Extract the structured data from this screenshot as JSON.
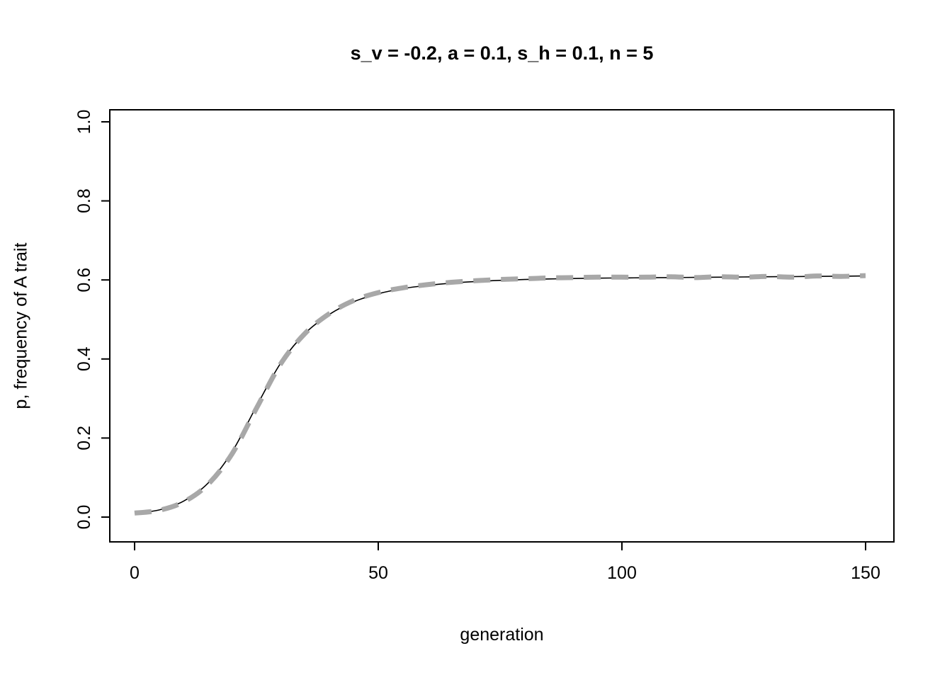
{
  "chart_data": {
    "type": "line",
    "title": "s_v = -0.2, a = 0.1, s_h = 0.1, n = 5",
    "xlabel": "generation",
    "ylabel": "p, frequency of A trait",
    "xlim": [
      0,
      150
    ],
    "ylim": [
      0.0,
      1.0
    ],
    "xticks": [
      0,
      50,
      100,
      150
    ],
    "xtick_labels": [
      "0",
      "50",
      "100",
      "150"
    ],
    "yticks": [
      0.0,
      0.2,
      0.4,
      0.6,
      0.8,
      1.0
    ],
    "ytick_labels": [
      "0.0",
      "0.2",
      "0.4",
      "0.6",
      "0.8",
      "1.0"
    ],
    "grid": false,
    "legend": null,
    "x": [
      0,
      5,
      10,
      15,
      20,
      25,
      30,
      35,
      40,
      45,
      50,
      55,
      60,
      65,
      70,
      75,
      80,
      85,
      90,
      95,
      100,
      105,
      110,
      115,
      120,
      125,
      130,
      135,
      140,
      145,
      150
    ],
    "series": [
      {
        "name": "analytic-recursion-solid-black",
        "color": "#000000",
        "line_width": 1.6,
        "dash": null,
        "values": [
          0.01,
          0.018,
          0.04,
          0.085,
          0.165,
          0.28,
          0.39,
          0.465,
          0.513,
          0.545,
          0.565,
          0.578,
          0.586,
          0.592,
          0.596,
          0.599,
          0.601,
          0.6025,
          0.6035,
          0.6045,
          0.605,
          0.6055,
          0.606,
          0.6065,
          0.607,
          0.6075,
          0.608,
          0.6085,
          0.609,
          0.6095,
          0.61
        ]
      },
      {
        "name": "simulation-dashed-gray",
        "color": "#a8a8a8",
        "line_width": 7,
        "dash": [
          24,
          15
        ],
        "values": [
          0.01,
          0.017,
          0.038,
          0.082,
          0.16,
          0.275,
          0.388,
          0.465,
          0.515,
          0.548,
          0.568,
          0.58,
          0.588,
          0.594,
          0.598,
          0.601,
          0.603,
          0.605,
          0.606,
          0.607,
          0.607,
          0.607,
          0.608,
          0.606,
          0.608,
          0.607,
          0.609,
          0.607,
          0.61,
          0.609,
          0.611
        ]
      }
    ]
  }
}
